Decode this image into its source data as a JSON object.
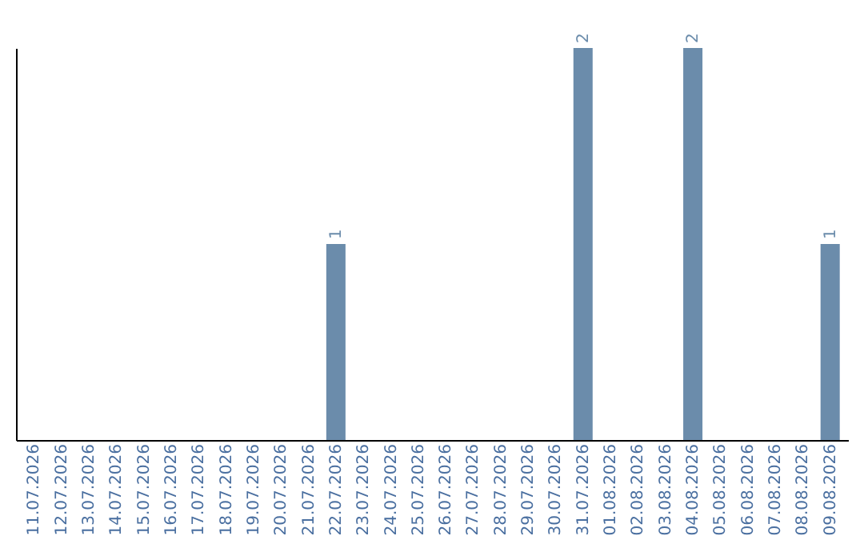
{
  "chart_data": {
    "type": "bar",
    "categories": [
      "11.07.2026",
      "12.07.2026",
      "13.07.2026",
      "14.07.2026",
      "15.07.2026",
      "16.07.2026",
      "17.07.2026",
      "18.07.2026",
      "19.07.2026",
      "20.07.2026",
      "21.07.2026",
      "22.07.2026",
      "23.07.2026",
      "24.07.2026",
      "25.07.2026",
      "26.07.2026",
      "27.07.2026",
      "28.07.2026",
      "29.07.2026",
      "30.07.2026",
      "31.07.2026",
      "01.08.2026",
      "02.08.2026",
      "03.08.2026",
      "04.08.2026",
      "05.08.2026",
      "06.08.2026",
      "07.08.2026",
      "08.08.2026",
      "09.08.2026"
    ],
    "values": [
      0,
      0,
      0,
      0,
      0,
      0,
      0,
      0,
      0,
      0,
      0,
      1,
      0,
      0,
      0,
      0,
      0,
      0,
      0,
      0,
      2,
      0,
      0,
      0,
      2,
      0,
      0,
      0,
      0,
      1
    ],
    "value_labels": [
      null,
      null,
      null,
      null,
      null,
      null,
      null,
      null,
      null,
      null,
      null,
      "1",
      null,
      null,
      null,
      null,
      null,
      null,
      null,
      null,
      "2",
      null,
      null,
      null,
      "2",
      null,
      null,
      null,
      null,
      "1"
    ],
    "color": "#6b8cab",
    "tick_labels": "x"
  }
}
